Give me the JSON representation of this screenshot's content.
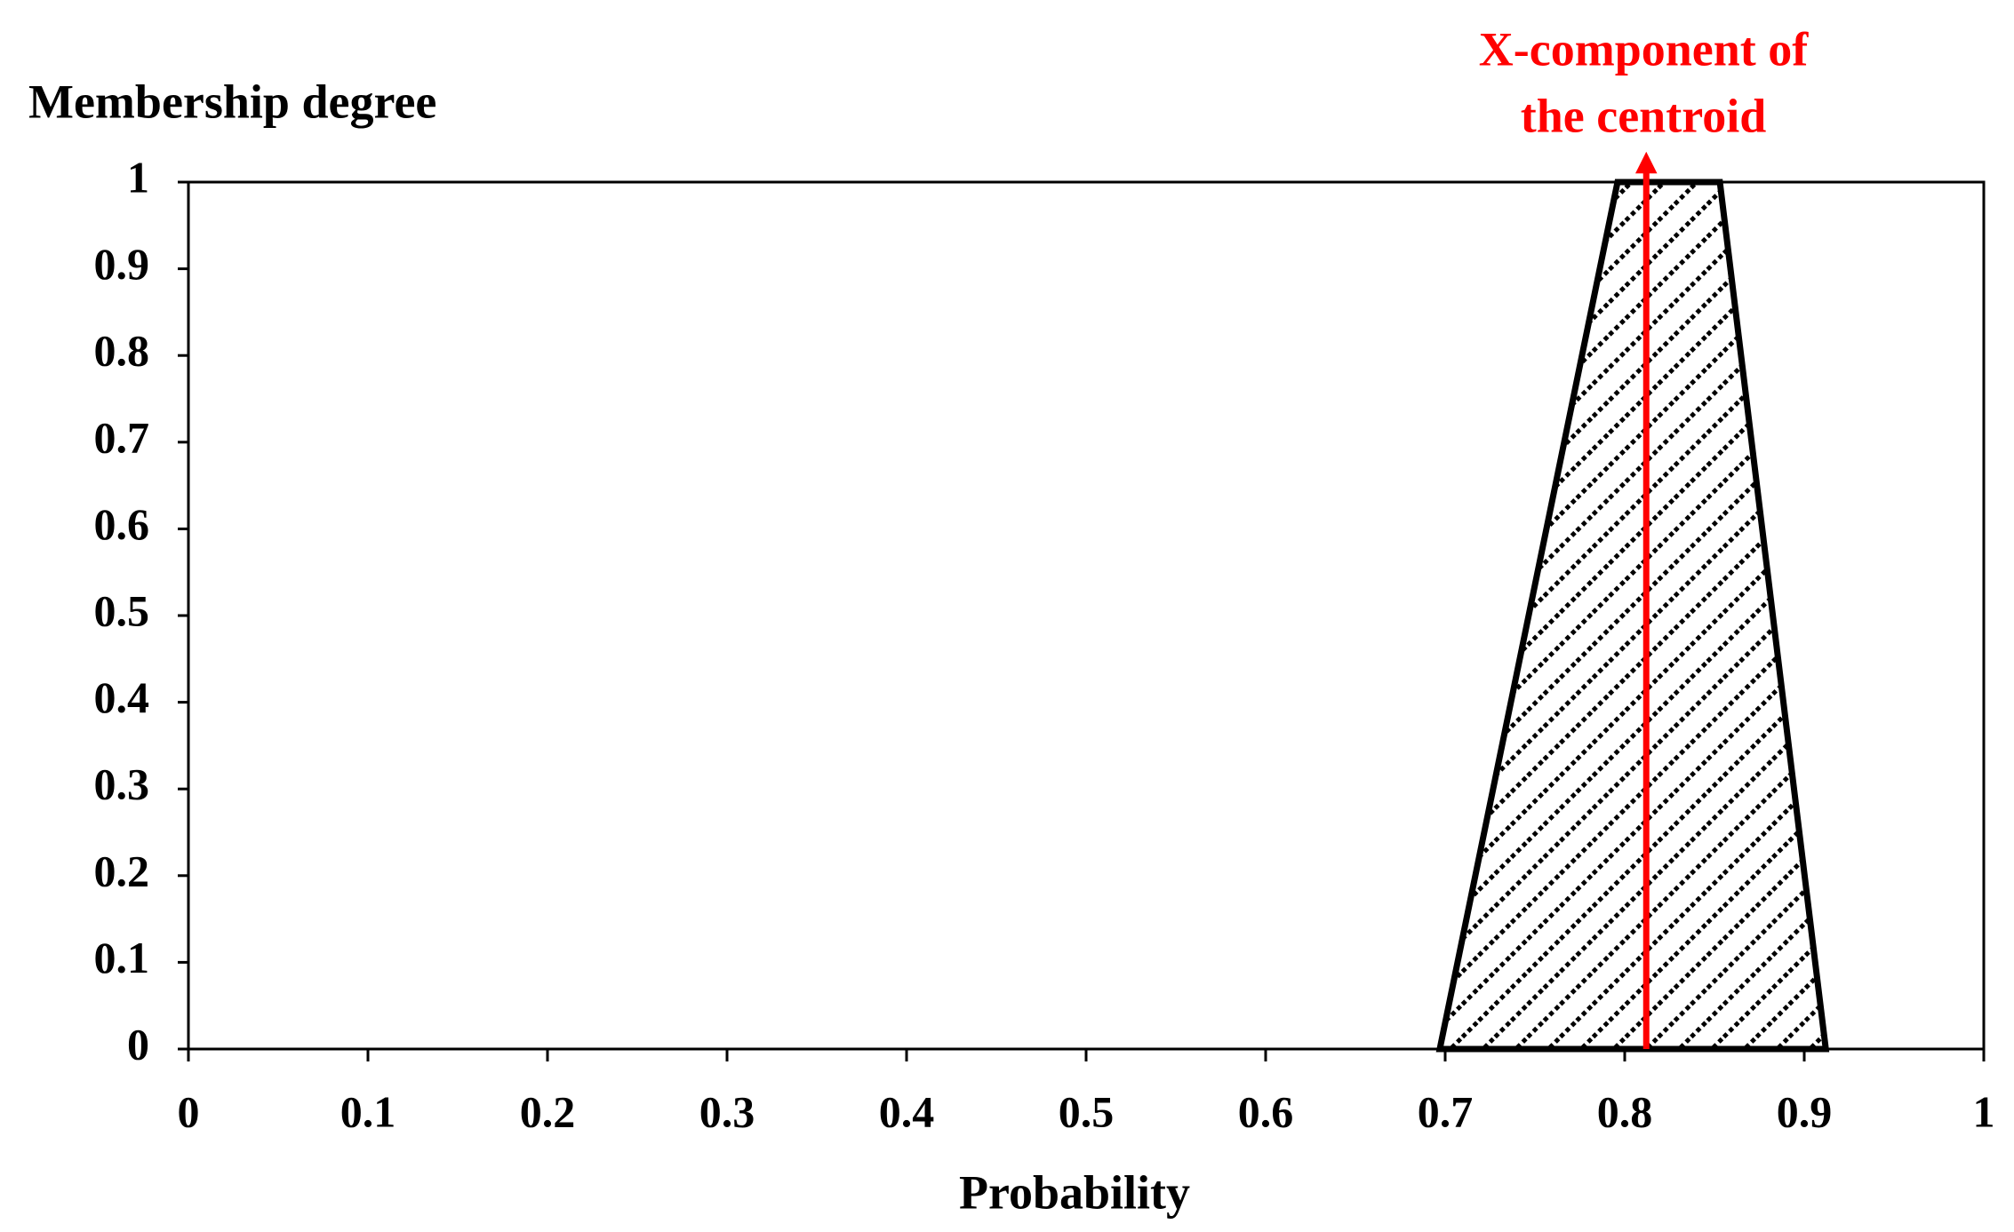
{
  "chart_data": {
    "type": "area",
    "y_axis_title": "Membership degree",
    "x_axis_title": "Probability",
    "annotation": [
      "X-component of",
      "the centroid"
    ],
    "annotation_color": "#ff0000",
    "centroid_x": 0.812,
    "x": [
      0.697,
      0.796,
      0.853,
      0.912
    ],
    "series": [
      {
        "color": "#000000",
        "values": [
          0,
          1,
          1,
          0
        ]
      }
    ],
    "xlim": [
      0,
      1
    ],
    "xticks": [
      0,
      0.1,
      0.2,
      0.3,
      0.4,
      0.5,
      0.6,
      0.7,
      0.8,
      0.9,
      1
    ],
    "ylim": [
      0,
      1
    ],
    "yticks": [
      0,
      0.1,
      0.2,
      0.3,
      0.4,
      0.5,
      0.6,
      0.7,
      0.8,
      0.9,
      1
    ],
    "grid": false
  }
}
